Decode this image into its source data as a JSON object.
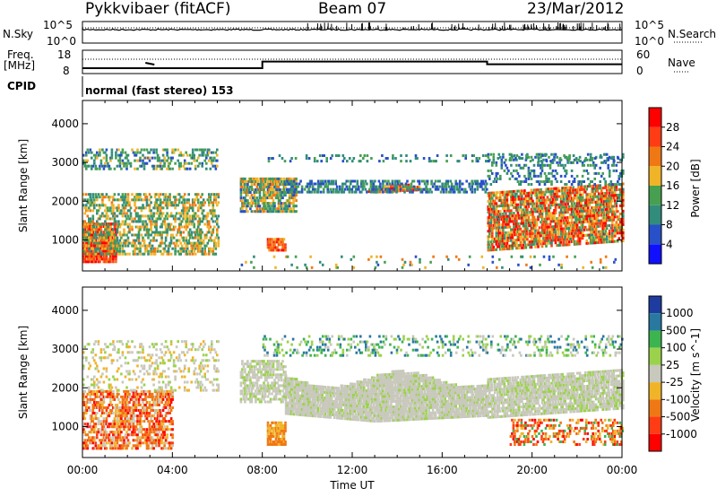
{
  "header": {
    "station": "Pykkvibaer (fitACF)",
    "beam": "Beam 07",
    "date": "23/Mar/2012"
  },
  "status_panels": {
    "nsky_label": "N.Sky",
    "nsearch_label": "N.Search",
    "noise_ticks": [
      "10^5",
      "10^0"
    ],
    "freq_label_1": "Freq.",
    "freq_label_2": "[MHz]",
    "freq_ticks": [
      "18",
      "8"
    ],
    "nave_label": "Nave",
    "nave_ticks": [
      "60",
      "0"
    ],
    "cpid_label": "CPID",
    "cpid_text": "normal (fast stereo) 153",
    "freq_steps": [
      {
        "t": 0,
        "f": 9.8
      },
      {
        "t": 8.0,
        "f": 9.8
      },
      {
        "t": 8.0,
        "f": 13.2
      },
      {
        "t": 18.0,
        "f": 13.2
      },
      {
        "t": 18.0,
        "f": 11.8
      },
      {
        "t": 24.0,
        "f": 11.8
      }
    ]
  },
  "chart_data": [
    {
      "type": "heatmap",
      "name": "power",
      "xlabel": "Time UT",
      "ylabel": "Slant Range [km]",
      "xlim": [
        0,
        24
      ],
      "ylim": [
        200,
        4600
      ],
      "yticks": [
        1000,
        2000,
        3000,
        4000
      ],
      "colorbar_label": "Power [dB]",
      "colorbar_ticks": [
        "4",
        "8",
        "12",
        "16",
        "20",
        "24",
        "28"
      ],
      "colorbar_range": [
        0,
        32
      ],
      "colorbar_colors": [
        "#1010ff",
        "#2850c8",
        "#328c7c",
        "#46a050",
        "#f0b428",
        "#f07814",
        "#ff3c14",
        "#ff0000"
      ]
    },
    {
      "type": "heatmap",
      "name": "velocity",
      "xlabel": "Time UT",
      "ylabel": "Slant Range [km]",
      "xlim": [
        0,
        24
      ],
      "ylim": [
        200,
        4600
      ],
      "yticks": [
        1000,
        2000,
        3000,
        4000
      ],
      "xtick_labels": [
        "00:00",
        "04:00",
        "08:00",
        "12:00",
        "16:00",
        "20:00",
        "00:00"
      ],
      "colorbar_label": "Velocity [m s^-1]",
      "colorbar_ticks": [
        "1000",
        "500",
        "100",
        "25",
        "-25",
        "-100",
        "-500",
        "-1000"
      ],
      "colorbar_colors": [
        "#1e3ca0",
        "#2878a0",
        "#3cb450",
        "#9bd24b",
        "#c8c8bc",
        "#f0b428",
        "#f07814",
        "#ff3c14",
        "#ff0000"
      ]
    }
  ]
}
